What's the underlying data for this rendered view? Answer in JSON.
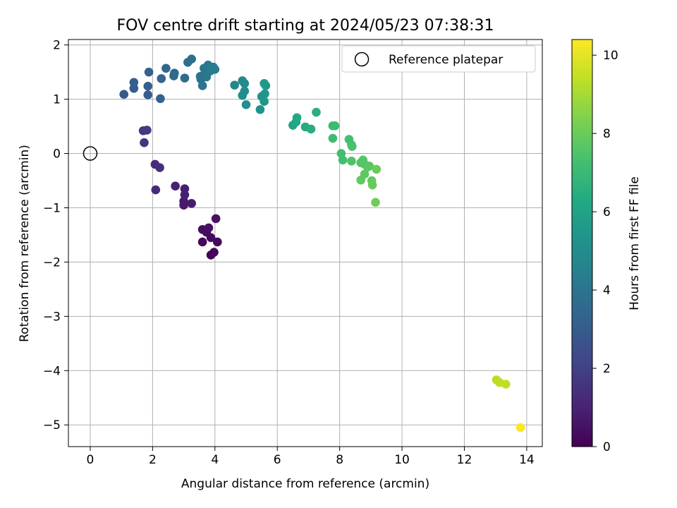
{
  "chart_data": {
    "type": "scatter",
    "title": "FOV centre drift starting at 2024/05/23 07:38:31",
    "xlabel": "Angular distance from reference (arcmin)",
    "ylabel": "Rotation from reference (arcmin)",
    "xlim": [
      -0.7,
      14.5
    ],
    "ylim": [
      -5.4,
      2.1
    ],
    "xticks": [
      0,
      2,
      4,
      6,
      8,
      10,
      12,
      14
    ],
    "yticks": [
      -5,
      -4,
      -3,
      -2,
      -1,
      0,
      1,
      2
    ],
    "xtick_labels": [
      "0",
      "2",
      "4",
      "6",
      "8",
      "10",
      "12",
      "14"
    ],
    "ytick_labels": [
      "−5",
      "−4",
      "−3",
      "−2",
      "−1",
      "0",
      "1",
      "2"
    ],
    "grid": true,
    "legend": {
      "placement": "top-right",
      "entries": [
        "Reference platepar"
      ]
    },
    "reference_point": {
      "x": 0,
      "y": 0
    },
    "colorbar": {
      "label": "Hours from first FF file",
      "range": [
        0,
        10.4
      ],
      "ticks": [
        0,
        2,
        4,
        6,
        8,
        10
      ],
      "tick_labels": [
        "0",
        "2",
        "4",
        "6",
        "8",
        "10"
      ],
      "colormap": "viridis"
    },
    "points": [
      {
        "x": 3.87,
        "y": -1.87,
        "h": 0.1
      },
      {
        "x": 3.97,
        "y": -1.82,
        "h": 0.15
      },
      {
        "x": 4.08,
        "y": -1.63,
        "h": 0.2
      },
      {
        "x": 3.6,
        "y": -1.63,
        "h": 0.25
      },
      {
        "x": 3.87,
        "y": -1.55,
        "h": 0.3
      },
      {
        "x": 3.73,
        "y": -1.45,
        "h": 0.35
      },
      {
        "x": 3.6,
        "y": -1.4,
        "h": 0.4
      },
      {
        "x": 3.8,
        "y": -1.37,
        "h": 0.45
      },
      {
        "x": 4.03,
        "y": -1.2,
        "h": 0.5
      },
      {
        "x": 3.0,
        "y": -0.95,
        "h": 0.7
      },
      {
        "x": 3.0,
        "y": -0.88,
        "h": 0.75
      },
      {
        "x": 3.25,
        "y": -0.92,
        "h": 0.8
      },
      {
        "x": 3.03,
        "y": -0.76,
        "h": 0.85
      },
      {
        "x": 3.03,
        "y": -0.65,
        "h": 0.9
      },
      {
        "x": 2.73,
        "y": -0.6,
        "h": 0.95
      },
      {
        "x": 2.1,
        "y": -0.67,
        "h": 1.2
      },
      {
        "x": 2.08,
        "y": -0.2,
        "h": 1.3
      },
      {
        "x": 2.23,
        "y": -0.26,
        "h": 1.35
      },
      {
        "x": 1.73,
        "y": 0.2,
        "h": 1.6
      },
      {
        "x": 1.7,
        "y": 0.42,
        "h": 1.7
      },
      {
        "x": 1.82,
        "y": 0.43,
        "h": 1.75
      },
      {
        "x": 1.08,
        "y": 1.09,
        "h": 2.9
      },
      {
        "x": 1.4,
        "y": 1.2,
        "h": 3.0
      },
      {
        "x": 1.4,
        "y": 1.31,
        "h": 3.05
      },
      {
        "x": 1.85,
        "y": 1.08,
        "h": 3.1
      },
      {
        "x": 1.85,
        "y": 1.24,
        "h": 3.15
      },
      {
        "x": 1.88,
        "y": 1.5,
        "h": 3.2
      },
      {
        "x": 2.25,
        "y": 1.01,
        "h": 3.3
      },
      {
        "x": 2.28,
        "y": 1.38,
        "h": 3.35
      },
      {
        "x": 2.43,
        "y": 1.57,
        "h": 3.4
      },
      {
        "x": 2.68,
        "y": 1.43,
        "h": 3.5
      },
      {
        "x": 2.7,
        "y": 1.48,
        "h": 3.55
      },
      {
        "x": 3.03,
        "y": 1.39,
        "h": 3.65
      },
      {
        "x": 3.13,
        "y": 1.68,
        "h": 3.7
      },
      {
        "x": 3.25,
        "y": 1.74,
        "h": 3.75
      },
      {
        "x": 3.55,
        "y": 1.37,
        "h": 3.85
      },
      {
        "x": 3.6,
        "y": 1.25,
        "h": 3.9
      },
      {
        "x": 3.53,
        "y": 1.42,
        "h": 3.95
      },
      {
        "x": 3.68,
        "y": 1.48,
        "h": 4.0
      },
      {
        "x": 3.65,
        "y": 1.57,
        "h": 4.05
      },
      {
        "x": 3.73,
        "y": 1.41,
        "h": 4.1
      },
      {
        "x": 3.78,
        "y": 1.63,
        "h": 4.15
      },
      {
        "x": 3.85,
        "y": 1.52,
        "h": 4.2
      },
      {
        "x": 3.95,
        "y": 1.59,
        "h": 4.25
      },
      {
        "x": 4.0,
        "y": 1.55,
        "h": 4.3
      },
      {
        "x": 4.63,
        "y": 1.26,
        "h": 4.8
      },
      {
        "x": 4.88,
        "y": 1.34,
        "h": 4.9
      },
      {
        "x": 4.95,
        "y": 1.29,
        "h": 4.95
      },
      {
        "x": 4.95,
        "y": 1.15,
        "h": 5.0
      },
      {
        "x": 4.88,
        "y": 1.07,
        "h": 5.05
      },
      {
        "x": 5.0,
        "y": 0.9,
        "h": 5.1
      },
      {
        "x": 5.45,
        "y": 0.81,
        "h": 5.3
      },
      {
        "x": 5.5,
        "y": 1.05,
        "h": 5.35
      },
      {
        "x": 5.6,
        "y": 1.1,
        "h": 5.4
      },
      {
        "x": 5.58,
        "y": 0.96,
        "h": 5.45
      },
      {
        "x": 5.58,
        "y": 1.29,
        "h": 5.5
      },
      {
        "x": 5.63,
        "y": 1.25,
        "h": 5.55
      },
      {
        "x": 6.5,
        "y": 0.52,
        "h": 6.1
      },
      {
        "x": 6.63,
        "y": 0.66,
        "h": 6.2
      },
      {
        "x": 6.6,
        "y": 0.58,
        "h": 6.25
      },
      {
        "x": 6.9,
        "y": 0.49,
        "h": 6.35
      },
      {
        "x": 7.08,
        "y": 0.45,
        "h": 6.45
      },
      {
        "x": 7.25,
        "y": 0.76,
        "h": 6.5
      },
      {
        "x": 7.78,
        "y": 0.51,
        "h": 7.0
      },
      {
        "x": 7.85,
        "y": 0.51,
        "h": 7.05
      },
      {
        "x": 7.78,
        "y": 0.28,
        "h": 7.1
      },
      {
        "x": 8.05,
        "y": 0.0,
        "h": 7.2
      },
      {
        "x": 8.1,
        "y": -0.12,
        "h": 7.25
      },
      {
        "x": 8.3,
        "y": 0.26,
        "h": 7.3
      },
      {
        "x": 8.38,
        "y": 0.16,
        "h": 7.35
      },
      {
        "x": 8.4,
        "y": 0.13,
        "h": 7.4
      },
      {
        "x": 8.38,
        "y": -0.14,
        "h": 7.45
      },
      {
        "x": 8.68,
        "y": -0.17,
        "h": 7.55
      },
      {
        "x": 8.75,
        "y": -0.12,
        "h": 7.6
      },
      {
        "x": 8.8,
        "y": -0.2,
        "h": 7.65
      },
      {
        "x": 8.9,
        "y": -0.25,
        "h": 7.7
      },
      {
        "x": 8.95,
        "y": -0.23,
        "h": 7.75
      },
      {
        "x": 8.8,
        "y": -0.38,
        "h": 7.8
      },
      {
        "x": 8.68,
        "y": -0.49,
        "h": 7.85
      },
      {
        "x": 9.03,
        "y": -0.5,
        "h": 7.9
      },
      {
        "x": 9.05,
        "y": -0.58,
        "h": 7.95
      },
      {
        "x": 9.18,
        "y": -0.29,
        "h": 8.0
      },
      {
        "x": 9.15,
        "y": -0.9,
        "h": 8.1
      },
      {
        "x": 13.03,
        "y": -4.17,
        "h": 9.3
      },
      {
        "x": 13.13,
        "y": -4.22,
        "h": 9.35
      },
      {
        "x": 13.33,
        "y": -4.25,
        "h": 9.4
      },
      {
        "x": 13.8,
        "y": -5.05,
        "h": 10.4
      }
    ]
  }
}
